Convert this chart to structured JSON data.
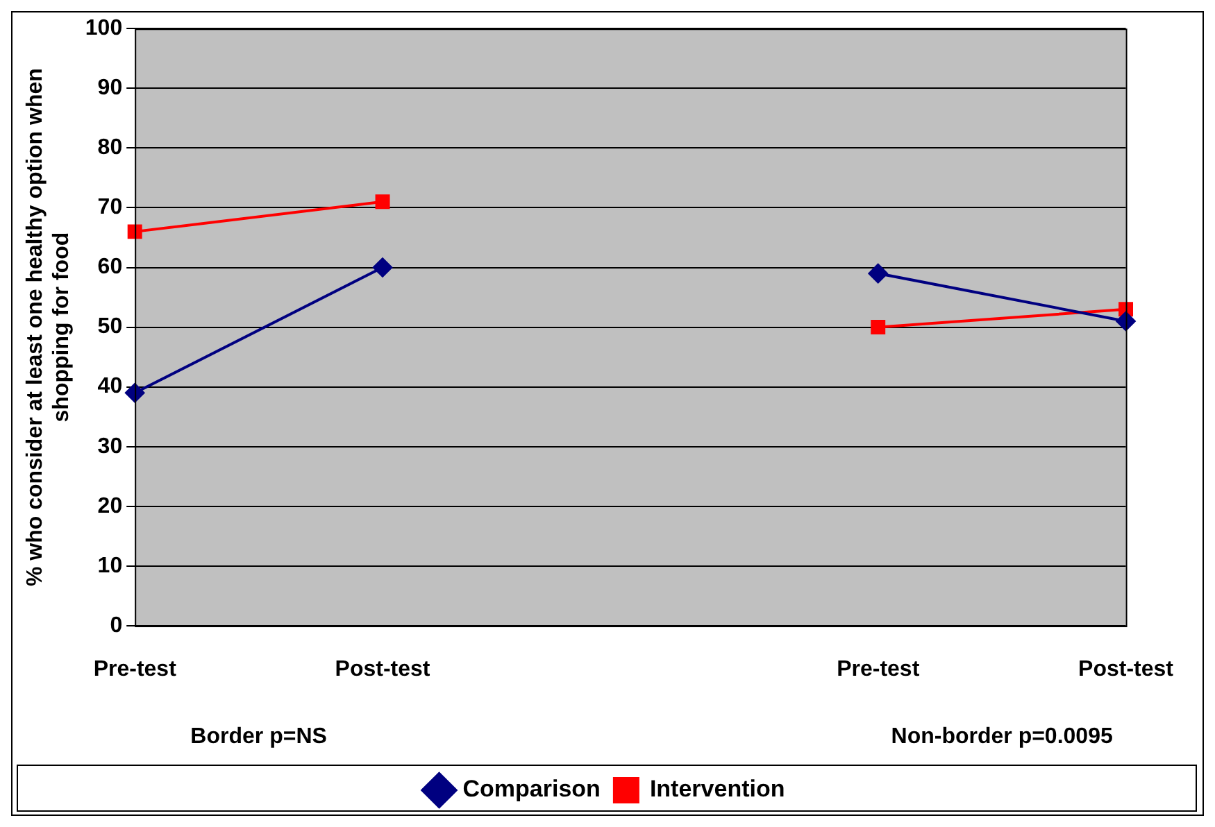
{
  "chart_data": {
    "type": "line",
    "ylabel": "% who consider at least one healthy option when shopping for food",
    "categories": [
      "Pre-test",
      "Post-test",
      null,
      "Pre-test",
      "Post-test"
    ],
    "series": [
      {
        "name": "Comparison",
        "color": "#000080",
        "marker": "diamond",
        "values": [
          39,
          60,
          null,
          59,
          51
        ]
      },
      {
        "name": "Intervention",
        "color": "#ff0000",
        "marker": "square",
        "values": [
          66,
          71,
          null,
          50,
          53
        ]
      }
    ],
    "ylim": [
      0,
      100
    ],
    "yticks": [
      0,
      10,
      20,
      30,
      40,
      50,
      60,
      70,
      80,
      90,
      100
    ],
    "grid": "y",
    "legend": "bottom",
    "annotations": [
      "Border p=NS",
      "Non-border p=0.0095"
    ]
  }
}
